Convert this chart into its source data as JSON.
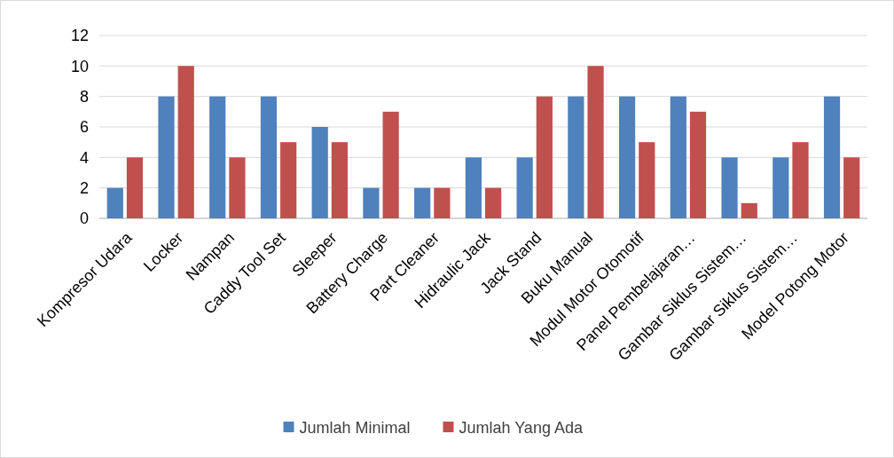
{
  "chart_data": {
    "type": "bar",
    "categories": [
      "Kompresor Udara",
      "Locker",
      "Nampan",
      "Caddy Tool Set",
      "Sleeper",
      "Battery Charge",
      "Part Cleaner",
      "Hidraulic Jack",
      "Jack Stand",
      "Buku Manual",
      "Modul Motor Otomotif",
      "Panel Pembelajaran…",
      "Gambar Siklus Sistem…",
      "Gambar Siklus Sistem…",
      "Model Potong Motor"
    ],
    "series": [
      {
        "name": "Jumlah Minimal",
        "color": "#4f81bd",
        "values": [
          2,
          8,
          8,
          8,
          6,
          2,
          2,
          4,
          4,
          8,
          8,
          8,
          4,
          4,
          8
        ]
      },
      {
        "name": "Jumlah Yang Ada",
        "color": "#c0504d",
        "values": [
          4,
          10,
          4,
          5,
          5,
          7,
          2,
          2,
          8,
          10,
          5,
          7,
          1,
          5,
          4
        ]
      }
    ],
    "ylim": [
      0,
      12
    ],
    "yticks": [
      0,
      2,
      4,
      6,
      8,
      10,
      12
    ],
    "grid": "y",
    "legend": "bottom"
  }
}
